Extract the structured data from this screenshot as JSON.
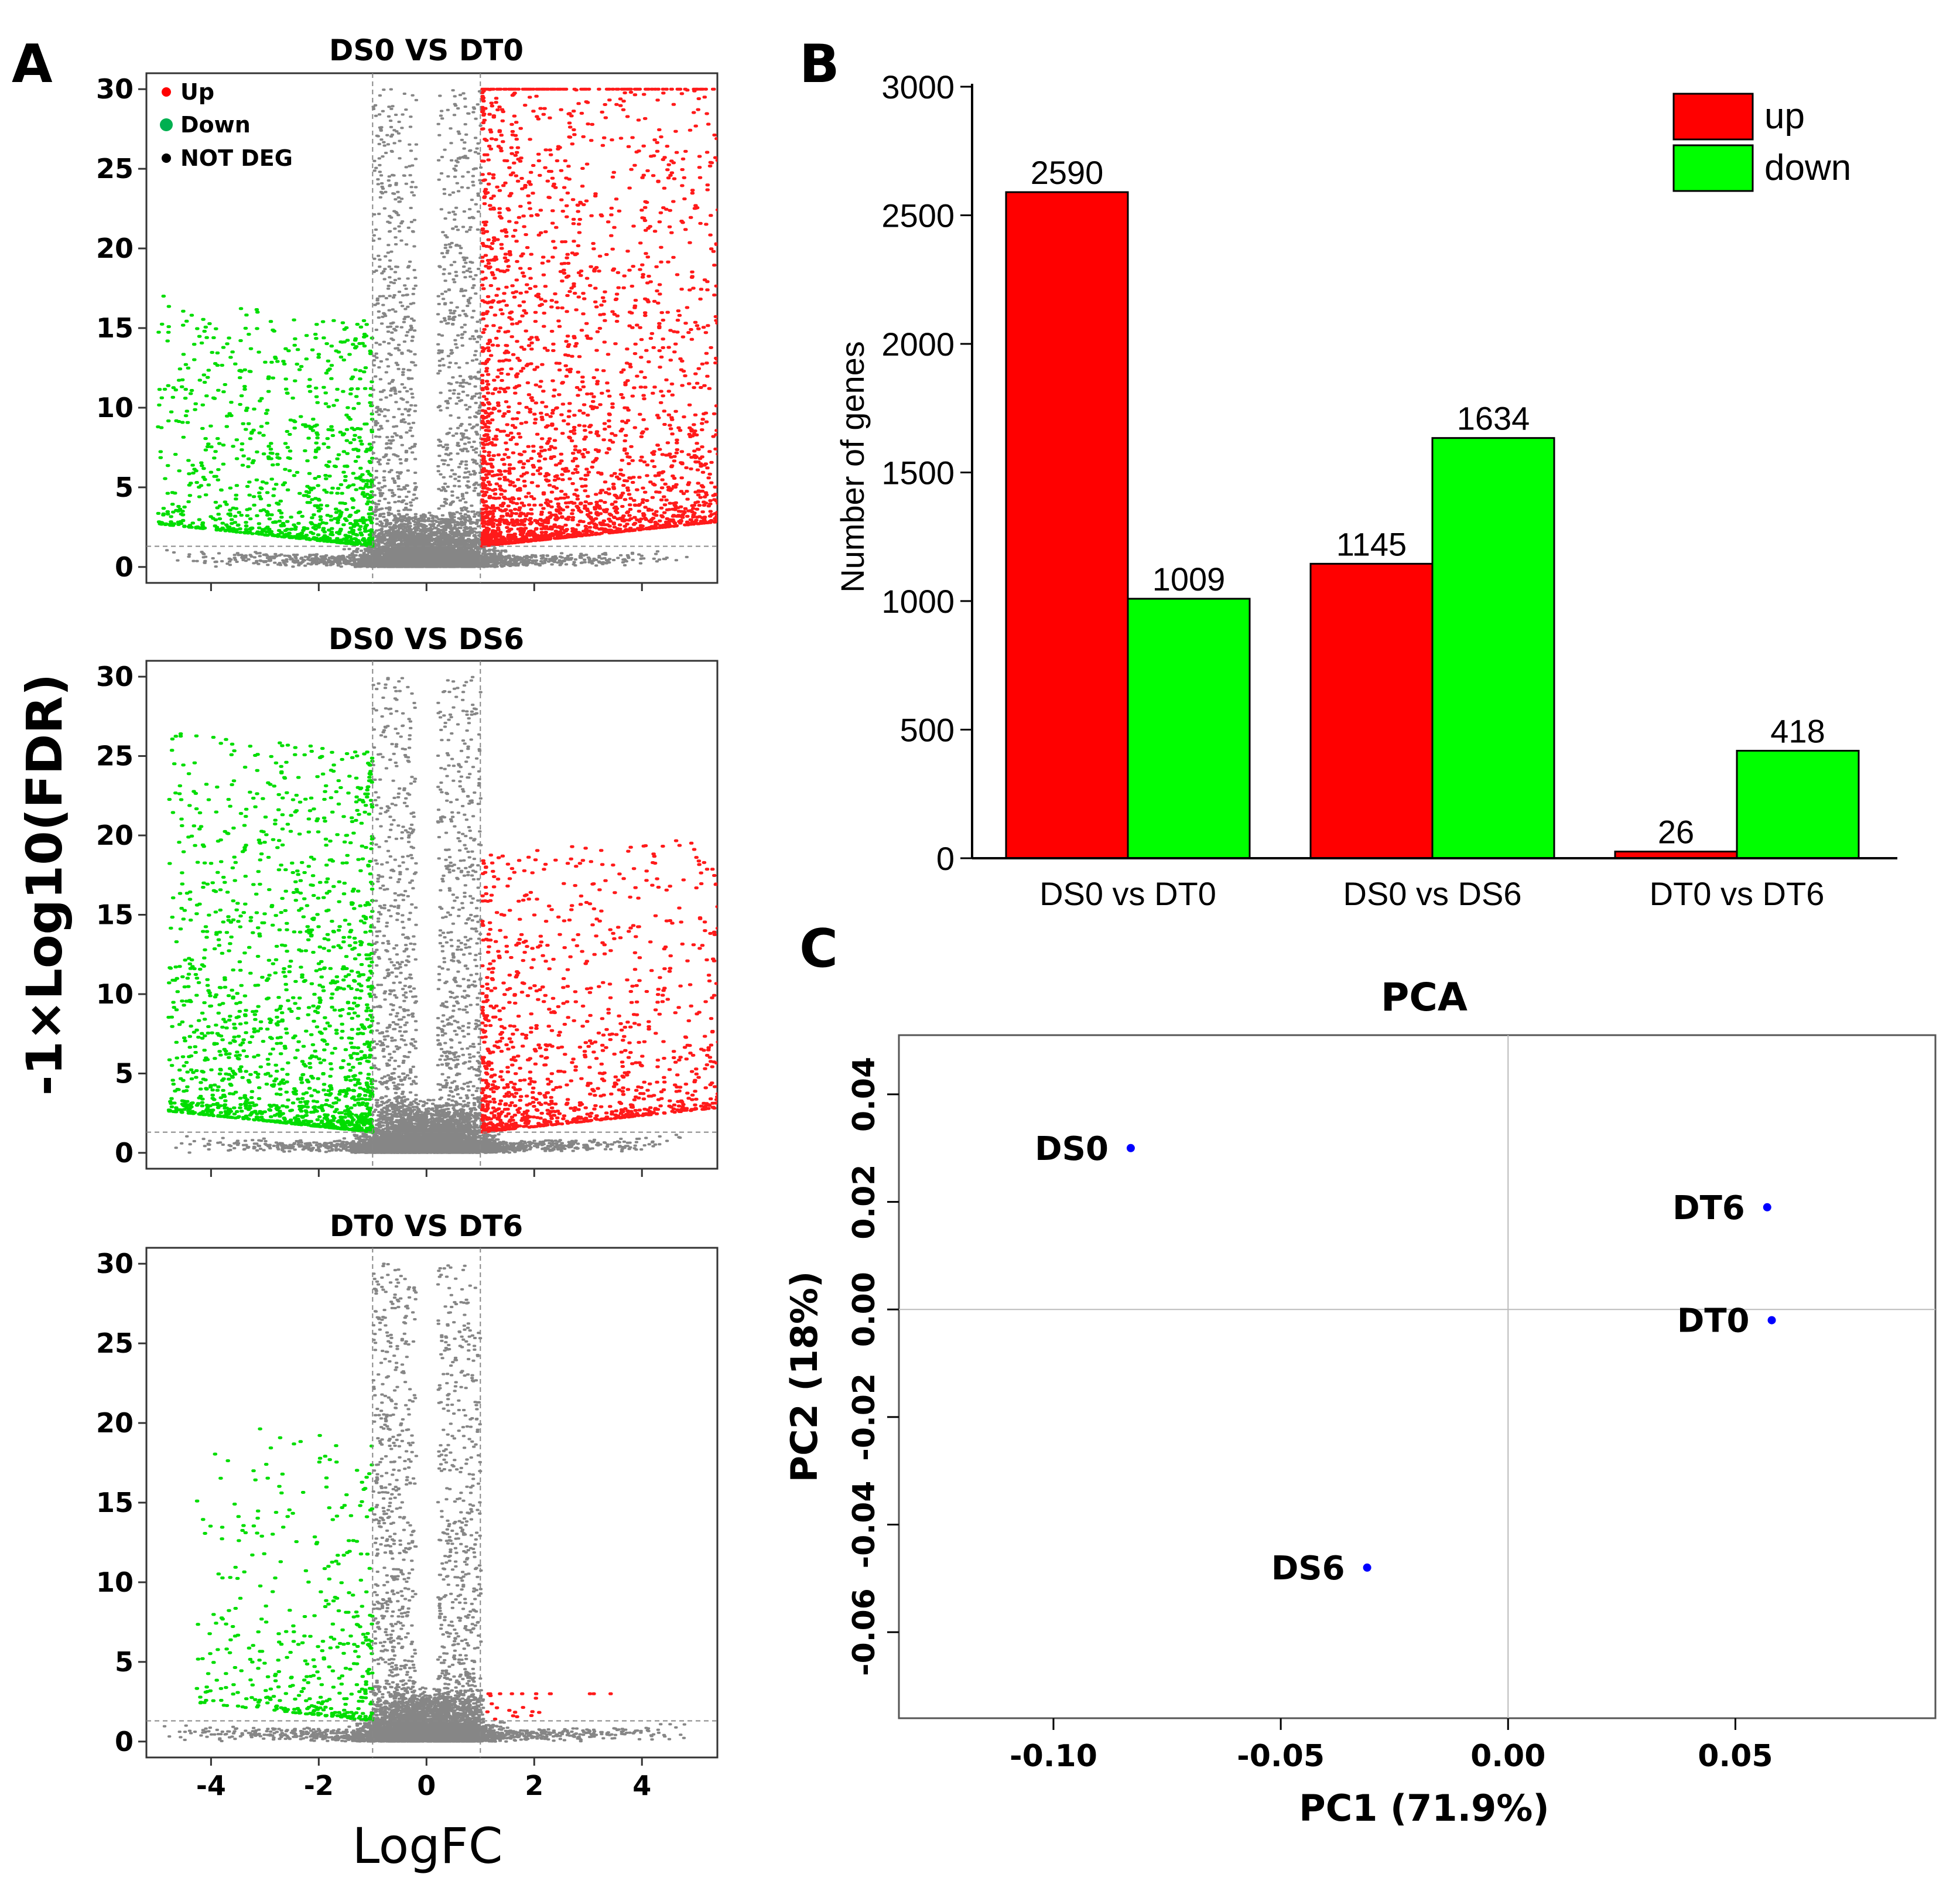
{
  "panel_labels": {
    "a": "A",
    "b": "B",
    "c": "C"
  },
  "volcano_axes": {
    "ylabel": "-1×Log10(FDR)",
    "xlabel": "LogFC"
  },
  "chart_data": [
    {
      "id": "volcano-ds0-dt0",
      "type": "scatter",
      "title": "DS0  VS  DT0",
      "xlim": [
        -5.2,
        5.4
      ],
      "ylim": [
        -1,
        31
      ],
      "xticks": [
        -4,
        -2,
        0,
        2,
        4
      ],
      "xtick_labels": [
        "-4",
        "-2",
        "0",
        "2",
        "4"
      ],
      "yticks": [
        0,
        5,
        10,
        15,
        20,
        25,
        30
      ],
      "ytick_labels": [
        "0",
        "5",
        "10",
        "15",
        "20",
        "25",
        "30"
      ],
      "logfc_threshold": [
        -1,
        1
      ],
      "fdr_line": 1.3,
      "legend": [
        {
          "label": "Up",
          "color": "#ff0000"
        },
        {
          "label": "Down",
          "color": "#00b050"
        },
        {
          "label": "NOT DEG",
          "color": "#000000"
        }
      ],
      "sim": {
        "up": 2590,
        "down": 1009,
        "ns": 6000,
        "seed": 11,
        "upMaxX": 5.4,
        "downMinX": -5.0,
        "upY": 1.0,
        "downY": 0.45,
        "upCap": 30,
        "downCap": 30
      }
    },
    {
      "id": "volcano-ds0-ds6",
      "type": "scatter",
      "title": "DS0  VS  DS6",
      "xlim": [
        -5.2,
        5.4
      ],
      "ylim": [
        -1,
        31
      ],
      "xticks": [
        -4,
        -2,
        0,
        2,
        4
      ],
      "xtick_labels": [
        "-4",
        "-2",
        "0",
        "2",
        "4"
      ],
      "yticks": [
        0,
        5,
        10,
        15,
        20,
        25,
        30
      ],
      "ytick_labels": [
        "0",
        "5",
        "10",
        "15",
        "20",
        "25",
        "30"
      ],
      "logfc_threshold": [
        -1,
        1
      ],
      "fdr_line": 1.3,
      "sim": {
        "up": 1145,
        "down": 1634,
        "ns": 6000,
        "seed": 23,
        "upMaxX": 5.4,
        "downMinX": -4.8,
        "upY": 0.55,
        "downY": 0.75,
        "upCap": 30,
        "downCap": 30
      }
    },
    {
      "id": "volcano-dt0-dt6",
      "type": "scatter",
      "title": "DT0  VS  DT6",
      "xlim": [
        -5.2,
        5.4
      ],
      "ylim": [
        -1,
        31
      ],
      "xticks": [
        -4,
        -2,
        0,
        2,
        4
      ],
      "xtick_labels": [
        "-4",
        "-2",
        "0",
        "2",
        "4"
      ],
      "yticks": [
        0,
        5,
        10,
        15,
        20,
        25,
        30
      ],
      "ytick_labels": [
        "0",
        "5",
        "10",
        "15",
        "20",
        "25",
        "30"
      ],
      "logfc_threshold": [
        -1,
        1
      ],
      "fdr_line": 1.3,
      "sim": {
        "up": 26,
        "down": 418,
        "ns": 6000,
        "seed": 37,
        "upMaxX": 3.5,
        "downMinX": -4.3,
        "upY": 0.15,
        "downY": 0.55,
        "upCap": 3,
        "downCap": 30
      }
    },
    {
      "id": "deg-bar",
      "type": "bar",
      "categories": [
        "DS0 vs DT0",
        "DS0 vs DS6",
        "DT0 vs DT6"
      ],
      "series": [
        {
          "name": "up",
          "color": "#ff0000",
          "values": [
            2590,
            1145,
            26
          ]
        },
        {
          "name": "down",
          "color": "#00ff00",
          "values": [
            1009,
            1634,
            418
          ]
        }
      ],
      "value_labels": [
        [
          "2590",
          "1145",
          "26"
        ],
        [
          "1009",
          "1634",
          "418"
        ]
      ],
      "ylabel": "Number of genes",
      "ylim": [
        0,
        3000
      ],
      "yticks": [
        0,
        500,
        1000,
        1500,
        2000,
        2500,
        3000
      ],
      "ytick_labels": [
        "0",
        "500",
        "1000",
        "1500",
        "2000",
        "2500",
        "3000"
      ],
      "legend_position": "top-right"
    },
    {
      "id": "pca",
      "type": "scatter",
      "title": "PCA",
      "xlabel": "PC1 (71.9%)",
      "ylabel": "PC2 (18%)",
      "xlim": [
        -0.134,
        0.094
      ],
      "ylim": [
        -0.076,
        0.051
      ],
      "xticks": [
        -0.1,
        -0.05,
        0.0,
        0.05
      ],
      "xtick_labels": [
        "-0.10",
        "-0.05",
        "0.00",
        "0.05"
      ],
      "yticks": [
        -0.06,
        -0.04,
        -0.02,
        0.0,
        0.02,
        0.04
      ],
      "ytick_labels": [
        "-0.06",
        "-0.04",
        "-0.02",
        "0.00",
        "0.02",
        "0.04"
      ],
      "points": [
        {
          "label": "DS0",
          "x": -0.083,
          "y": 0.03
        },
        {
          "label": "DT6",
          "x": 0.057,
          "y": 0.019
        },
        {
          "label": "DT0",
          "x": 0.058,
          "y": -0.002
        },
        {
          "label": "DS6",
          "x": -0.031,
          "y": -0.048
        }
      ],
      "point_color": "#0000ff",
      "refline_color": "#bbbbbb"
    }
  ]
}
